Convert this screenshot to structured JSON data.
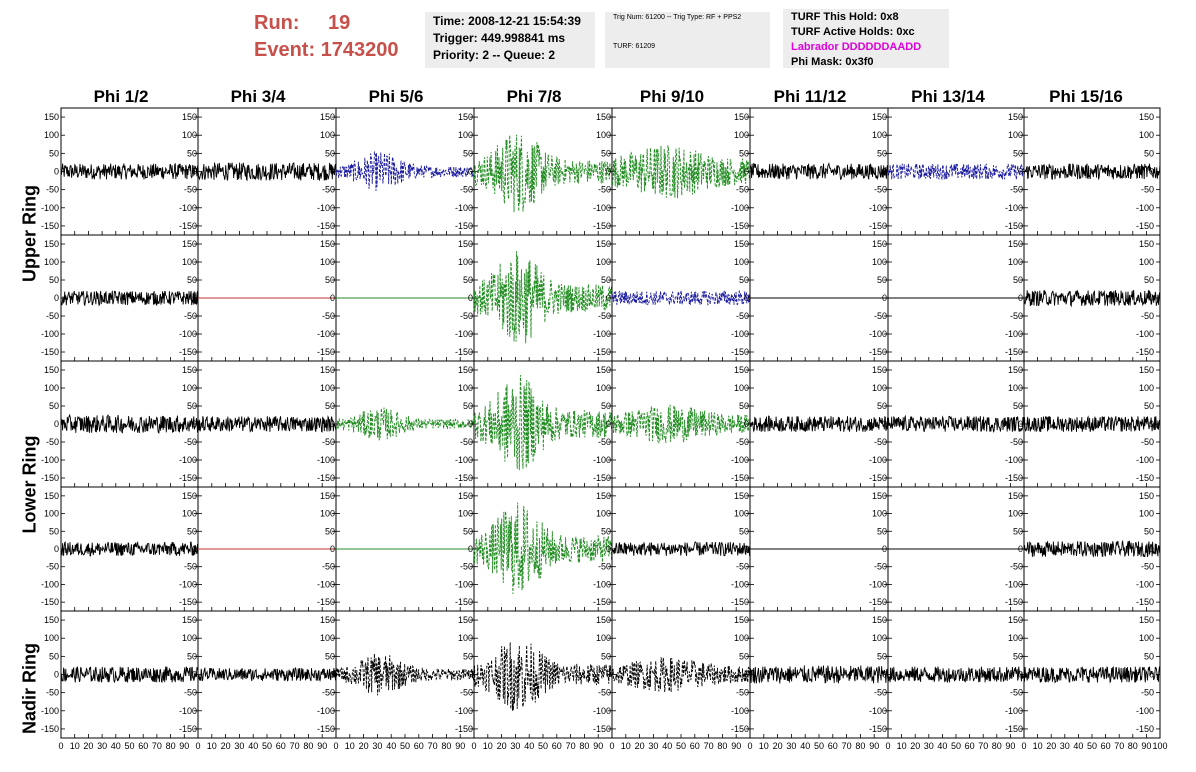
{
  "header": {
    "run_label": "Run:",
    "run_value": "19",
    "event_label": "Event:",
    "event_value": "1743200"
  },
  "info_box1": {
    "time": "Time: 2008-12-21 15:54:39",
    "trigger": "Trigger: 449.998841 ms",
    "priority": "Priority: 2 -- Queue: 2"
  },
  "info_box2": {
    "trig": "Trig Num: 61200 -- Trig Type: RF + PPS2",
    "turf": "TURF: 61209"
  },
  "info_box3": {
    "this_hold": "TURF This Hold: 0x8",
    "active_holds": "TURF Active Holds: 0xc",
    "labrador": "Labrador DDDDDDAADD",
    "phi_mask": "Phi Mask: 0x3f0"
  },
  "chart_data": {
    "type": "line",
    "columns": [
      "Phi 1/2",
      "Phi 3/4",
      "Phi 5/6",
      "Phi 7/8",
      "Phi 9/10",
      "Phi 11/12",
      "Phi 13/14",
      "Phi 15/16"
    ],
    "row_groups": [
      "Upper Ring",
      "Lower Ring",
      "Nadir Ring"
    ],
    "y_ticks": [
      150,
      100,
      50,
      0,
      -50,
      -100,
      -150
    ],
    "x_ticks": [
      0,
      10,
      20,
      30,
      40,
      50,
      60,
      70,
      80,
      90,
      100
    ],
    "xlim": [
      0,
      100
    ],
    "ylim": [
      -175,
      175
    ],
    "colors": {
      "black": "#000000",
      "blue": "#1a1aa0",
      "green": "#1e8c1e",
      "red": "#c03030",
      "flat_green": "#2a8a2a"
    },
    "panels": [
      [
        {
          "c": "black",
          "a": 22
        },
        {
          "c": "black",
          "a": 25
        },
        {
          "c": "blue",
          "a": 45,
          "env": "mid"
        },
        {
          "c": "green",
          "a": 95,
          "env": "mid"
        },
        {
          "c": "green",
          "a": 70,
          "env": "wide"
        },
        {
          "c": "black",
          "a": 22
        },
        {
          "c": "blue",
          "a": 22
        },
        {
          "c": "black",
          "a": 22
        }
      ],
      [
        {
          "c": "black",
          "a": 20
        },
        {
          "c": "red",
          "a": 0
        },
        {
          "c": "flat_green",
          "a": 0
        },
        {
          "c": "green",
          "a": 110,
          "env": "mid"
        },
        {
          "c": "blue",
          "a": 20
        },
        {
          "c": "black",
          "a": 0
        },
        {
          "c": "black",
          "a": 0
        },
        {
          "c": "black",
          "a": 22
        }
      ],
      [
        {
          "c": "black",
          "a": 25
        },
        {
          "c": "black",
          "a": 22
        },
        {
          "c": "green",
          "a": 38,
          "env": "mid"
        },
        {
          "c": "green",
          "a": 110,
          "env": "mid"
        },
        {
          "c": "green",
          "a": 50,
          "env": "wide"
        },
        {
          "c": "black",
          "a": 22
        },
        {
          "c": "black",
          "a": 22
        },
        {
          "c": "black",
          "a": 22
        }
      ],
      [
        {
          "c": "black",
          "a": 20
        },
        {
          "c": "red",
          "a": 0
        },
        {
          "c": "flat_green",
          "a": 0
        },
        {
          "c": "green",
          "a": 110,
          "env": "mid"
        },
        {
          "c": "black",
          "a": 20
        },
        {
          "c": "black",
          "a": 0
        },
        {
          "c": "black",
          "a": 0
        },
        {
          "c": "black",
          "a": 22
        }
      ],
      [
        {
          "c": "black",
          "a": 22
        },
        {
          "c": "black",
          "a": 18
        },
        {
          "c": "black",
          "a": 48,
          "env": "mid"
        },
        {
          "c": "black",
          "a": 85,
          "env": "mid"
        },
        {
          "c": "black",
          "a": 45,
          "env": "wide"
        },
        {
          "c": "black",
          "a": 25
        },
        {
          "c": "black",
          "a": 22
        },
        {
          "c": "black",
          "a": 22
        }
      ]
    ]
  }
}
